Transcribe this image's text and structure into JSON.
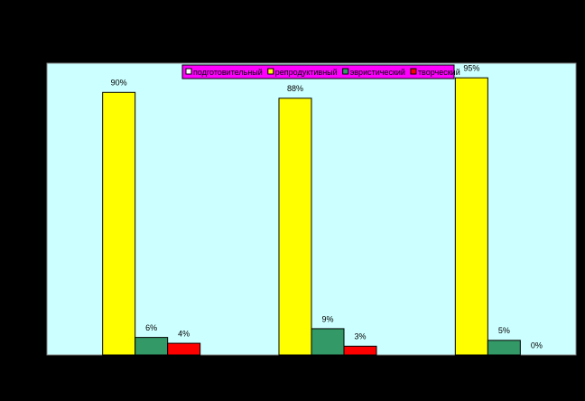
{
  "chart_data": {
    "type": "bar",
    "categories": [
      null,
      null,
      null
    ],
    "series": [
      {
        "name": "подготовительный",
        "color": "#ffffff",
        "values": [
          null,
          null,
          null
        ]
      },
      {
        "name": "репродуктивный",
        "color": "#ffff00",
        "values": [
          90,
          88,
          95
        ],
        "value_labels": [
          "90%",
          "88%",
          "95%"
        ]
      },
      {
        "name": "эвристический",
        "color": "#339966",
        "values": [
          6,
          9,
          5
        ],
        "value_labels": [
          "6%",
          "9%",
          "5%"
        ]
      },
      {
        "name": "творческий",
        "color": "#ff0000",
        "values": [
          4,
          3,
          0
        ],
        "value_labels": [
          "4%",
          "3%",
          "0%"
        ]
      }
    ],
    "ylim": [
      0,
      100
    ],
    "legend": "top"
  }
}
